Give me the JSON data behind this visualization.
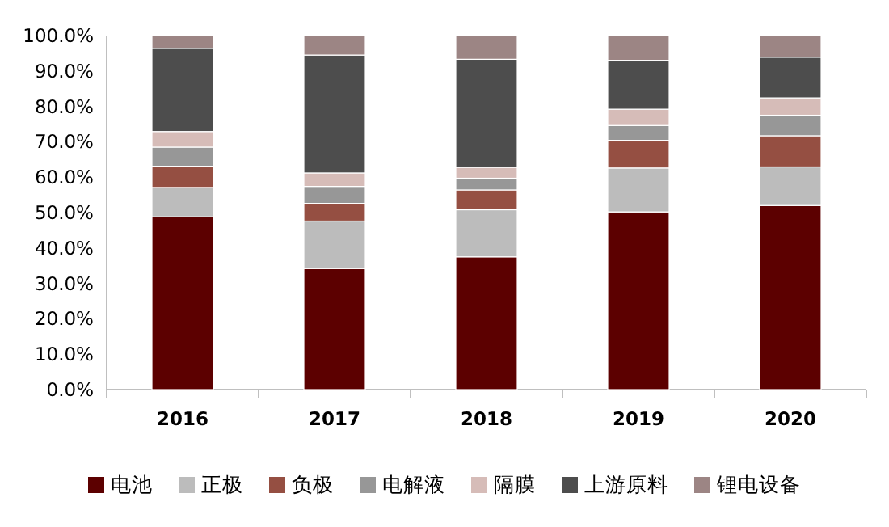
{
  "chart_data": {
    "type": "bar",
    "stacked": true,
    "categories": [
      "2016",
      "2017",
      "2018",
      "2019",
      "2020"
    ],
    "series": [
      {
        "name": "电池",
        "color": "#5c0000",
        "values": [
          48.8,
          34.2,
          37.5,
          50.2,
          52.0
        ]
      },
      {
        "name": "正极",
        "color": "#bcbcbc",
        "values": [
          8.3,
          13.4,
          13.3,
          12.4,
          10.9
        ]
      },
      {
        "name": "负极",
        "color": "#954f42",
        "values": [
          6.0,
          5.0,
          5.6,
          7.8,
          8.8
        ]
      },
      {
        "name": "电解液",
        "color": "#979797",
        "values": [
          5.4,
          4.8,
          3.3,
          4.2,
          5.8
        ]
      },
      {
        "name": "隔膜",
        "color": "#d6bcb8",
        "values": [
          4.4,
          3.8,
          3.1,
          4.6,
          4.9
        ]
      },
      {
        "name": "上游原料",
        "color": "#4d4d4d",
        "values": [
          23.5,
          33.3,
          30.5,
          13.8,
          11.5
        ]
      },
      {
        "name": "锂电设备",
        "color": "#9c8584",
        "values": [
          3.6,
          5.5,
          6.7,
          7.0,
          6.1
        ]
      }
    ],
    "ylim": [
      0,
      100
    ],
    "yticks": [
      {
        "value": 0,
        "label": "0.0%"
      },
      {
        "value": 10,
        "label": "10.0%"
      },
      {
        "value": 20,
        "label": "20.0%"
      },
      {
        "value": 30,
        "label": "30.0%"
      },
      {
        "value": 40,
        "label": "40.0%"
      },
      {
        "value": 50,
        "label": "50.0%"
      },
      {
        "value": 60,
        "label": "60.0%"
      },
      {
        "value": 70,
        "label": "70.0%"
      },
      {
        "value": 80,
        "label": "80.0%"
      },
      {
        "value": 90,
        "label": "90.0%"
      },
      {
        "value": 100,
        "label": "100.0%"
      }
    ],
    "legend": "bottom"
  }
}
